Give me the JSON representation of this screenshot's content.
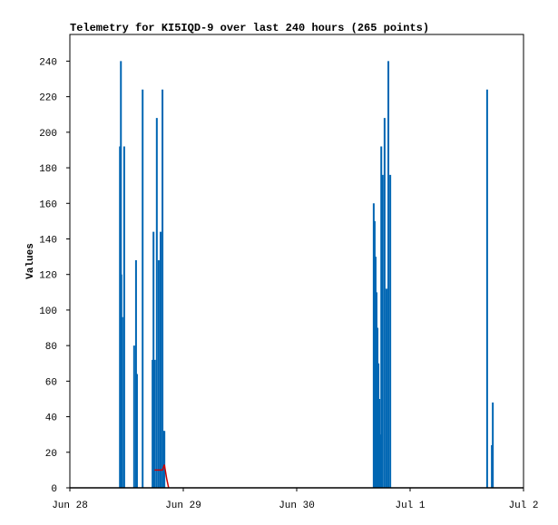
{
  "chart_data": {
    "type": "bar",
    "title": "Telemetry for KI5IQD-9 over last 240 hours (265 points)",
    "y_label": "Values",
    "xlim": [
      0,
      96
    ],
    "xticks": [
      {
        "value": 0,
        "label": "Jun 28"
      },
      {
        "value": 24,
        "label": "Jun 29"
      },
      {
        "value": 48,
        "label": "Jun 30"
      },
      {
        "value": 72,
        "label": "Jul 1"
      },
      {
        "value": 96,
        "label": "Jul 2"
      }
    ],
    "ylim": [
      0,
      255
    ],
    "yticks": [
      0,
      20,
      40,
      60,
      80,
      100,
      120,
      140,
      160,
      180,
      200,
      220,
      240
    ],
    "series": [
      {
        "color": "#0066b3",
        "style": "impulse",
        "x": [
          10.6,
          10.8,
          10.9,
          11.1,
          11.5,
          13.6,
          14.0,
          14.2,
          15.4,
          17.5,
          17.7,
          18.0,
          18.4,
          18.8,
          19.2,
          19.6,
          19.8,
          20.0,
          64.3,
          64.5,
          64.7,
          64.9,
          65.1,
          65.3,
          65.5,
          65.7,
          65.9,
          66.2,
          66.6,
          67.0,
          67.4,
          67.8,
          88.3,
          89.3,
          89.5
        ],
        "values": [
          192,
          240,
          120,
          96,
          192,
          80,
          128,
          64,
          224,
          72,
          144,
          72,
          208,
          128,
          144,
          224,
          32,
          32,
          160,
          150,
          130,
          110,
          90,
          70,
          50,
          30,
          192,
          176,
          208,
          112,
          240,
          176,
          224,
          24,
          48
        ]
      },
      {
        "color": "#cc0000",
        "style": "line",
        "x": [
          17.9,
          19.6,
          20.0,
          20.5,
          20.9
        ],
        "values": [
          10,
          10,
          13,
          5,
          0
        ]
      }
    ]
  }
}
